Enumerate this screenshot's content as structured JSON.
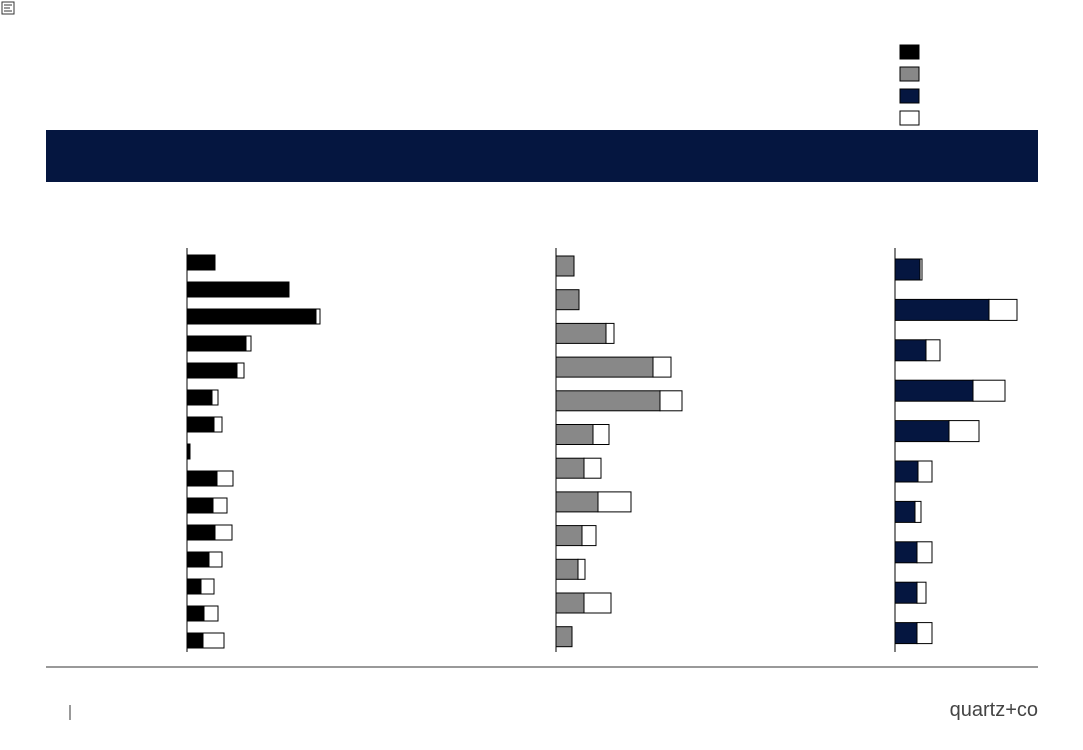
{
  "chart_data": [
    {
      "type": "bar",
      "orientation": "horizontal",
      "stacked": true,
      "series": [
        {
          "color": "#000000",
          "values": [
            27,
            102,
            129,
            59,
            50,
            25,
            27,
            3,
            30,
            26,
            28,
            22,
            14,
            17,
            16
          ]
        },
        {
          "color": "#ffffff",
          "values": [
            1,
            0,
            4,
            5,
            7,
            6,
            8,
            0,
            16,
            14,
            17,
            13,
            13,
            14,
            21
          ]
        }
      ]
    },
    {
      "type": "bar",
      "orientation": "horizontal",
      "stacked": true,
      "series": [
        {
          "color": "#888888",
          "values": [
            18,
            23,
            50,
            97,
            104,
            37,
            28,
            42,
            26,
            22,
            28,
            16
          ]
        },
        {
          "color": "#ffffff",
          "values": [
            0,
            0,
            8,
            18,
            22,
            16,
            17,
            33,
            14,
            7,
            27,
            0
          ]
        }
      ]
    },
    {
      "type": "bar",
      "orientation": "horizontal",
      "stacked": true,
      "series": [
        {
          "color": "#051640",
          "values": [
            25,
            94,
            31,
            78,
            54,
            23,
            20,
            22,
            22,
            22
          ]
        },
        {
          "color": "#ffffff",
          "values": [
            2,
            28,
            14,
            32,
            30,
            14,
            6,
            15,
            9,
            15
          ]
        }
      ]
    }
  ],
  "footer": {
    "brand": "quartz+co"
  }
}
